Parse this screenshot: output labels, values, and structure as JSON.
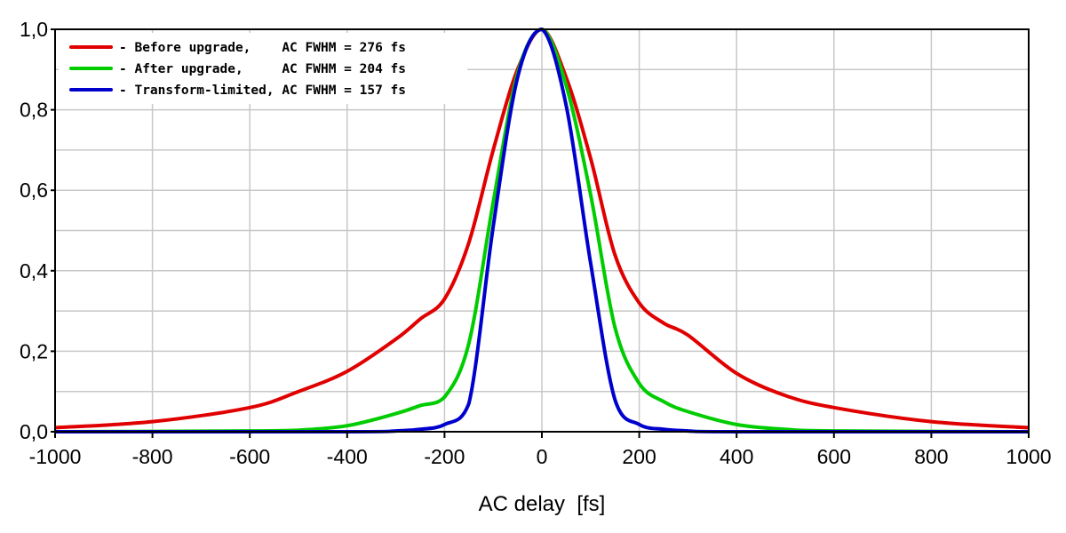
{
  "chart_data": {
    "type": "line",
    "title": "",
    "xlabel": "AC delay  [fs]",
    "ylabel": "",
    "xlim": [
      -1000,
      1000
    ],
    "ylim": [
      0,
      1
    ],
    "grid": true,
    "legend_placement": "top-left",
    "x_ticks": [
      "-1000",
      "-800",
      "-600",
      "-400",
      "-200",
      "0",
      "200",
      "400",
      "600",
      "800",
      "1000"
    ],
    "x_tick_values": [
      -1000,
      -800,
      -600,
      -400,
      -200,
      0,
      200,
      400,
      600,
      800,
      1000
    ],
    "y_ticks": [
      "0,0",
      "0,2",
      "0,4",
      "0,6",
      "0,8",
      "1,0"
    ],
    "y_tick_values": [
      0,
      0.2,
      0.4,
      0.6,
      0.8,
      1.0
    ],
    "series": [
      {
        "name": "- Before upgrade,    AC FWHM = 276 fs",
        "color": "#e00000",
        "x": [
          -1000,
          -800,
          -600,
          -500,
          -400,
          -300,
          -250,
          -200,
          -150,
          -100,
          -50,
          0,
          50,
          100,
          150,
          200,
          250,
          300,
          400,
          500,
          600,
          800,
          1000
        ],
        "y": [
          0.01,
          0.025,
          0.06,
          0.1,
          0.15,
          0.23,
          0.28,
          0.33,
          0.47,
          0.7,
          0.9,
          1.0,
          0.88,
          0.68,
          0.44,
          0.32,
          0.27,
          0.24,
          0.145,
          0.09,
          0.06,
          0.025,
          0.01
        ]
      },
      {
        "name": "- After upgrade,     AC FWHM = 204 fs",
        "color": "#00cc00",
        "x": [
          -1000,
          -600,
          -500,
          -400,
          -300,
          -250,
          -200,
          -150,
          -100,
          -50,
          0,
          50,
          100,
          150,
          200,
          250,
          300,
          400,
          500,
          600,
          1000
        ],
        "y": [
          0.0,
          0.002,
          0.004,
          0.015,
          0.045,
          0.065,
          0.086,
          0.22,
          0.57,
          0.89,
          1.0,
          0.86,
          0.59,
          0.26,
          0.12,
          0.075,
          0.05,
          0.018,
          0.006,
          0.002,
          0.0
        ]
      },
      {
        "name": "- Transform-limited, AC FWHM = 157 fs",
        "color": "#0000cc",
        "x": [
          -1000,
          -400,
          -300,
          -250,
          -200,
          -150,
          -100,
          -50,
          0,
          50,
          100,
          150,
          200,
          250,
          300,
          400,
          1000
        ],
        "y": [
          0.0,
          0.0,
          0.002,
          0.006,
          0.018,
          0.07,
          0.51,
          0.88,
          1.0,
          0.81,
          0.42,
          0.08,
          0.018,
          0.006,
          0.002,
          0.0,
          0.0
        ]
      }
    ]
  }
}
